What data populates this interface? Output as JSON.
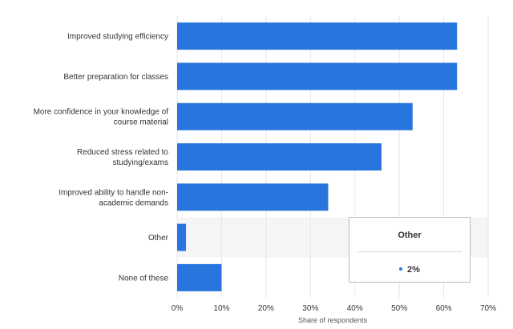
{
  "chart_data": {
    "type": "bar",
    "orientation": "horizontal",
    "categories": [
      [
        "Improved studying efficiency"
      ],
      [
        "Better preparation for classes"
      ],
      [
        "More confidence in your knowledge of",
        "course material"
      ],
      [
        "Reduced stress related to",
        "studying/exams"
      ],
      [
        "Improved ability to handle non-",
        "academic demands"
      ],
      [
        "Other"
      ],
      [
        "None of these"
      ]
    ],
    "values": [
      63,
      63,
      53,
      46,
      34,
      2,
      10
    ],
    "unit": "%",
    "xlabel": "Share of respondents",
    "xlim": [
      0,
      70
    ],
    "xticks": [
      0,
      10,
      20,
      30,
      40,
      50,
      60,
      70
    ],
    "tick_labels": [
      "0%",
      "10%",
      "20%",
      "30%",
      "40%",
      "50%",
      "60%",
      "70%"
    ],
    "grid": true,
    "highlighted_category_index": 5,
    "colors": {
      "bar": "#2876dd",
      "grid": "#e6e6e6",
      "hover_band": "#f5f5f5"
    }
  },
  "tooltip": {
    "title": "Other",
    "value": "2%"
  }
}
